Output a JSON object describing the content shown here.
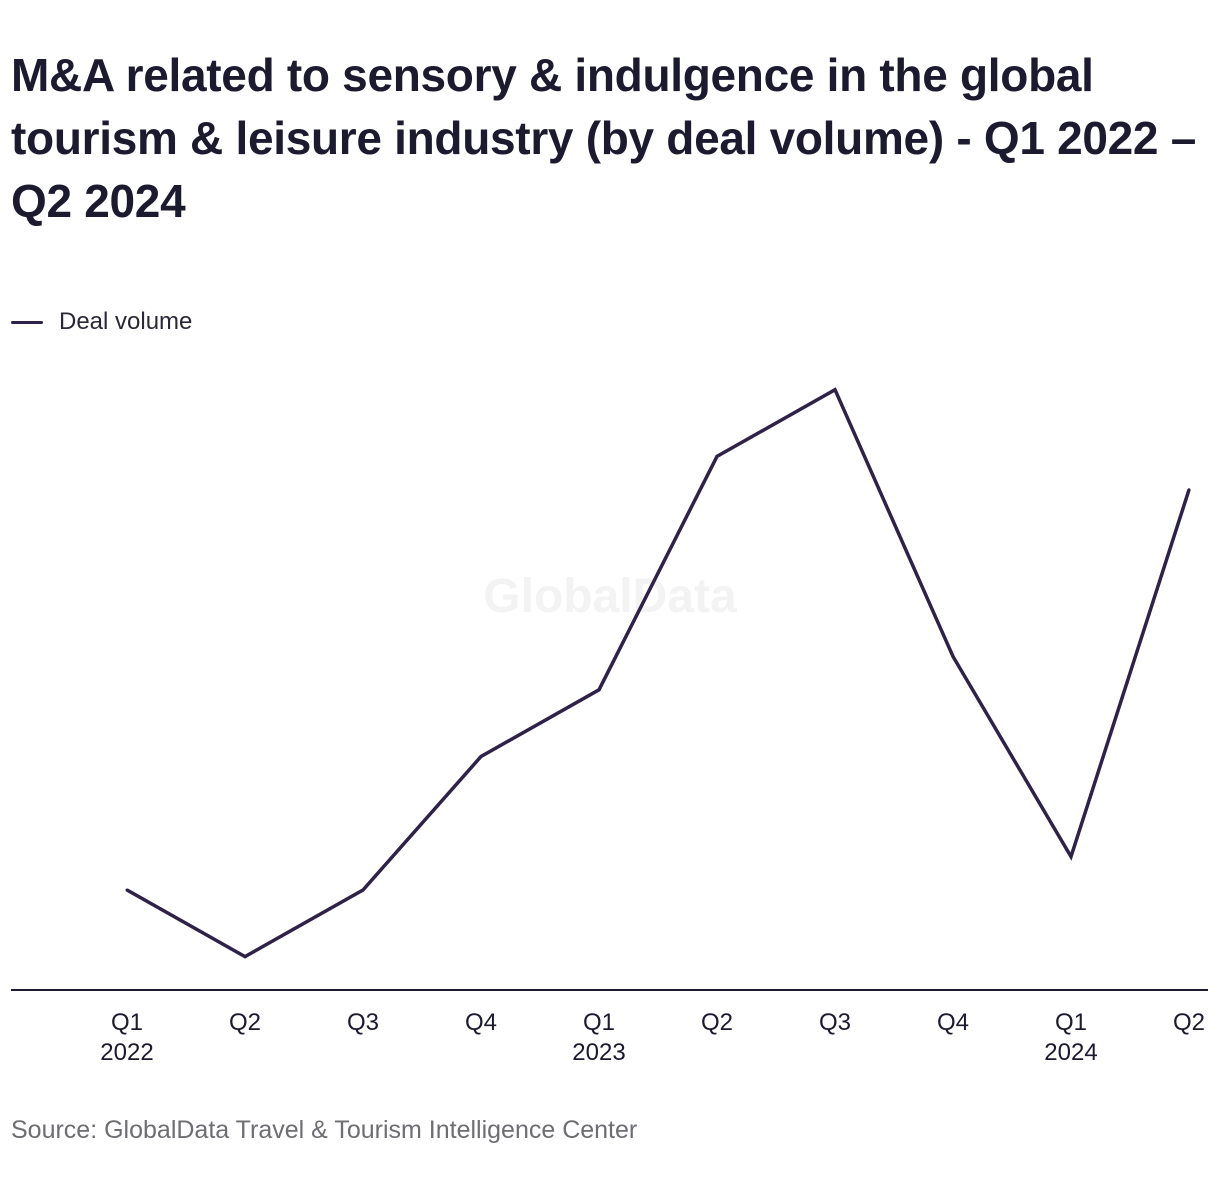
{
  "title": "M&A related to sensory & indulgence in the global tourism & leisure industry (by deal volume) - Q1 2022 – Q2 2024",
  "legend": {
    "label": "Deal volume"
  },
  "watermark": "GlobalData",
  "source": "Source: GlobalData Travel & Tourism Intelligence Center",
  "colors": {
    "line": "#2e2248",
    "axis": "#1b1a2e",
    "text": "#1b1a2e",
    "source_text": "#6d6d72",
    "watermark": "#f3f3f3"
  },
  "chart_data": {
    "type": "line",
    "categories": [
      [
        "Q1",
        "2022"
      ],
      [
        "Q2",
        ""
      ],
      [
        "Q3",
        ""
      ],
      [
        "Q4",
        ""
      ],
      [
        "Q1",
        "2023"
      ],
      [
        "Q2",
        ""
      ],
      [
        "Q3",
        ""
      ],
      [
        "Q4",
        ""
      ],
      [
        "Q1",
        "2024"
      ],
      [
        "Q2",
        ""
      ]
    ],
    "series": [
      {
        "name": "Deal volume",
        "values": [
          3,
          1,
          3,
          7,
          9,
          16,
          18,
          10,
          4,
          15
        ]
      }
    ],
    "ylim": [
      0,
      20
    ],
    "y_axis_visible": false,
    "grid": false,
    "legend_position": "top-left"
  }
}
